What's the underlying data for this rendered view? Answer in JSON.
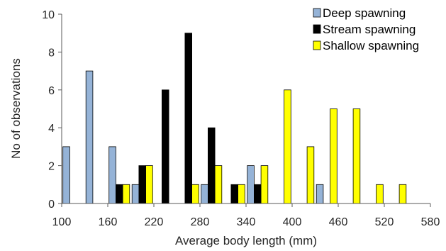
{
  "chart_data": {
    "type": "bar",
    "title": "",
    "xlabel": "Average body length (mm)",
    "ylabel": "No of observations",
    "xlim": [
      100,
      580
    ],
    "ylim": [
      0,
      10
    ],
    "x_ticks": [
      "100",
      "160",
      "220",
      "280",
      "340",
      "400",
      "460",
      "520",
      "580"
    ],
    "y_ticks": [
      "0",
      "2",
      "4",
      "6",
      "8",
      "10"
    ],
    "bin_width": 30,
    "bin_centers": [
      115,
      145,
      175,
      205,
      235,
      265,
      295,
      325,
      355,
      385,
      415,
      445,
      475,
      505,
      535,
      565
    ],
    "grid": false,
    "legend_position": "top-right",
    "series": [
      {
        "name": "Deep spawning",
        "color": "#95b3d7",
        "values": [
          3,
          7,
          3,
          1,
          0,
          0,
          1,
          0,
          2,
          0,
          0,
          1,
          0,
          0,
          0,
          0
        ]
      },
      {
        "name": "Stream spawning",
        "color": "#000000",
        "values": [
          0,
          0,
          1,
          2,
          6,
          9,
          4,
          1,
          1,
          0,
          0,
          0,
          0,
          0,
          0,
          0
        ]
      },
      {
        "name": "Shallow spawning",
        "color": "#ffff00",
        "values": [
          0,
          0,
          1,
          2,
          0,
          1,
          2,
          1,
          2,
          6,
          3,
          5,
          5,
          1,
          1,
          0
        ]
      }
    ]
  }
}
